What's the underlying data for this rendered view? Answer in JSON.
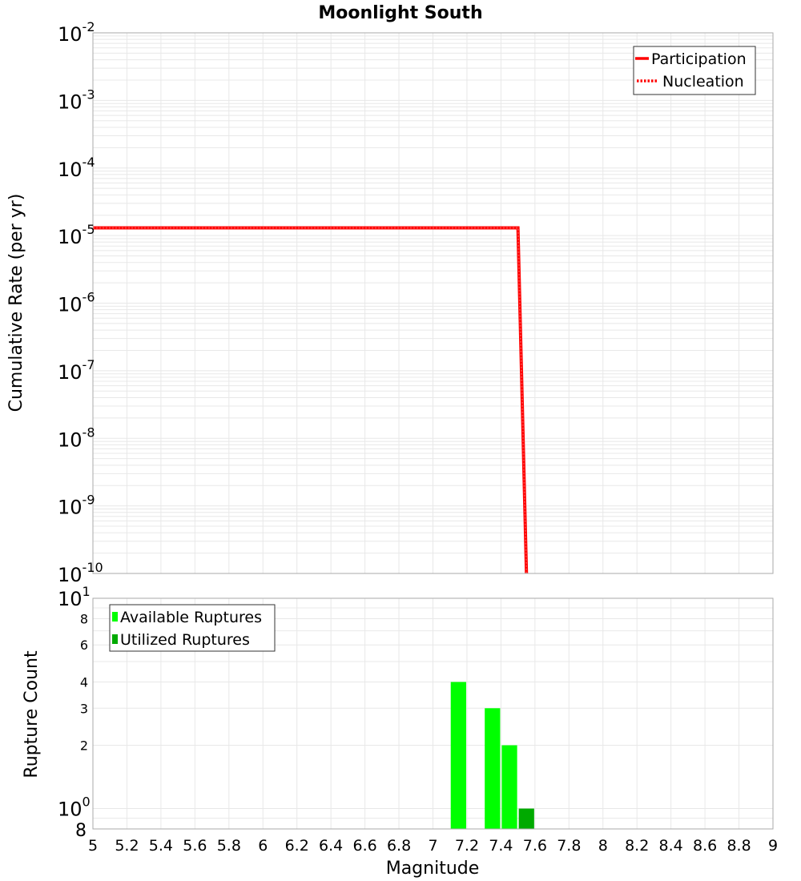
{
  "chart_data": [
    {
      "type": "line",
      "title": "Moonlight South",
      "xlabel": "",
      "ylabel": "Cumulative Rate (per yr)",
      "yscale": "log",
      "xlim": [
        5,
        9
      ],
      "ylim": [
        1e-10,
        0.01
      ],
      "y_tick_labels": [
        "10^-2",
        "10^-3",
        "10^-4",
        "10^-5",
        "10^-6",
        "10^-7",
        "10^-8",
        "10^-9",
        "10^-10"
      ],
      "grid": true,
      "legend_position": "top-right",
      "series": [
        {
          "name": "Participation",
          "style": "solid",
          "color": "#ff0000",
          "x": [
            5.0,
            7.5,
            7.55
          ],
          "y": [
            1.3e-05,
            1.3e-05,
            1e-10
          ]
        },
        {
          "name": "Nucleation",
          "style": "dotted",
          "color": "#ff0000",
          "x": [
            5.0,
            7.5,
            7.55
          ],
          "y": [
            1.3e-05,
            1.3e-05,
            1e-10
          ]
        }
      ]
    },
    {
      "type": "bar",
      "title": "",
      "xlabel": "Magnitude",
      "ylabel": "Rupture Count",
      "yscale": "log",
      "xlim": [
        5,
        9
      ],
      "ylim": [
        0.8,
        10
      ],
      "x_tick_labels": [
        "5",
        "5.2",
        "5.4",
        "5.6",
        "5.8",
        "6",
        "6.2",
        "6.4",
        "6.6",
        "6.8",
        "7",
        "7.2",
        "7.4",
        "7.6",
        "7.8",
        "8",
        "8.2",
        "8.4",
        "8.6",
        "8.8",
        "9"
      ],
      "y_tick_labels": [
        "10^1",
        "8",
        "6",
        "4",
        "3",
        "2",
        "10^0",
        "8"
      ],
      "grid": true,
      "legend_position": "top-left",
      "categories": [
        7.1,
        7.3,
        7.4,
        7.5
      ],
      "series": [
        {
          "name": "Available Ruptures",
          "color": "#00ff00",
          "values": [
            4,
            3,
            2,
            0
          ]
        },
        {
          "name": "Utilized Ruptures",
          "color": "#00aa00",
          "values": [
            0,
            0,
            0,
            1
          ]
        }
      ]
    }
  ],
  "top_chart": {
    "title": "Moonlight South",
    "ylabel": "Cumulative Rate (per yr)",
    "legend": [
      {
        "label": "Participation",
        "style": "solid"
      },
      {
        "label": "Nucleation",
        "style": "dotted"
      }
    ]
  },
  "bottom_chart": {
    "xlabel": "Magnitude",
    "ylabel": "Rupture Count",
    "legend": [
      {
        "label": "Available Ruptures",
        "color": "#00ff00"
      },
      {
        "label": "Utilized Ruptures",
        "color": "#00aa00"
      }
    ]
  },
  "colors": {
    "line": "#ff0000",
    "available": "#00ff00",
    "utilized": "#00aa00",
    "grid": "#e8e8e8",
    "frame": "#aaaaaa"
  }
}
